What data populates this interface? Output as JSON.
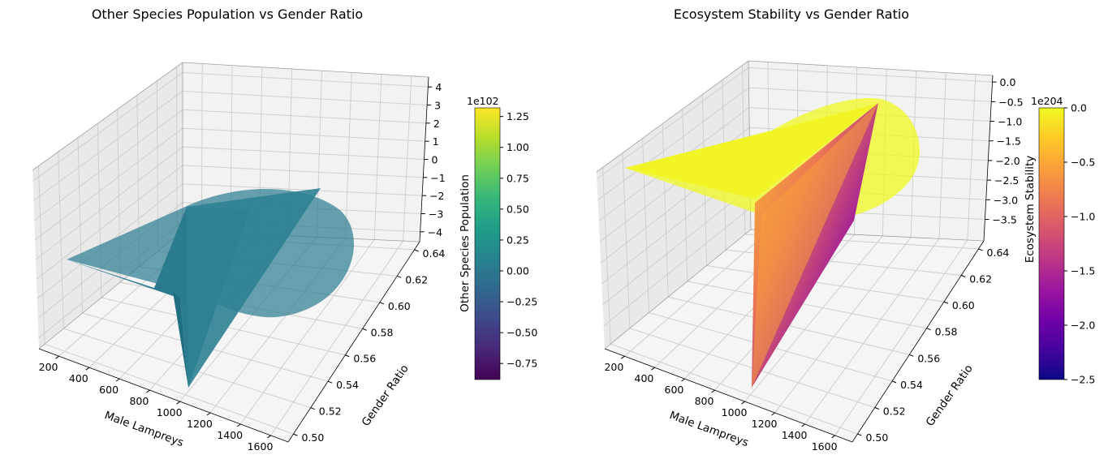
{
  "chart_data": [
    {
      "type": "surface",
      "title": "Other Species Population vs Gender Ratio",
      "xlabel": "Male Lampreys",
      "ylabel": "Gender Ratio",
      "zlabel": "Other Species Population",
      "colormap": "viridis",
      "surface_color": "#2a7b8e",
      "x_ticks": [
        "200",
        "400",
        "600",
        "800",
        "1000",
        "1200",
        "1400",
        "1600"
      ],
      "y_ticks": [
        "0.50",
        "0.52",
        "0.54",
        "0.56",
        "0.58",
        "0.60",
        "0.62",
        "0.64"
      ],
      "z_ticks": [
        "4",
        "3",
        "2",
        "1",
        "0",
        "−1",
        "−2",
        "−3",
        "−4"
      ],
      "colorbar": {
        "offset": "1e102",
        "ticks": [
          "1.25",
          "1.00",
          "0.75",
          "0.50",
          "0.25",
          "0.00",
          "−0.25",
          "−0.50",
          "−0.75"
        ],
        "range": [
          -0.88,
          1.32
        ],
        "tick_values": [
          1.25,
          1.0,
          0.75,
          0.5,
          0.25,
          0.0,
          -0.25,
          -0.5,
          -0.75
        ],
        "colors": [
          "#440154",
          "#482878",
          "#3e4989",
          "#31688e",
          "#26828e",
          "#1f9e89",
          "#35b779",
          "#6ece58",
          "#b5de2b",
          "#fde725"
        ]
      }
    },
    {
      "type": "surface",
      "title": "Ecosystem Stability vs Gender Ratio",
      "xlabel": "Male Lampreys",
      "ylabel": "Gender Ratio",
      "zlabel": "Ecosystem Stability",
      "colormap": "plasma",
      "x_ticks": [
        "200",
        "400",
        "600",
        "800",
        "1000",
        "1200",
        "1400",
        "1600"
      ],
      "y_ticks": [
        "0.50",
        "0.52",
        "0.54",
        "0.56",
        "0.58",
        "0.60",
        "0.62",
        "0.64"
      ],
      "z_ticks": [
        "0.0",
        "−0.5",
        "−1.0",
        "−1.5",
        "−2.0",
        "−2.5",
        "−3.0",
        "−3.5"
      ],
      "colorbar": {
        "offset": "1e204",
        "ticks": [
          "0.0",
          "−0.5",
          "−1.0",
          "−1.5",
          "−2.0",
          "−2.5"
        ],
        "range": [
          -2.5,
          0.0
        ],
        "tick_values": [
          0.0,
          -0.5,
          -1.0,
          -1.5,
          -2.0,
          -2.5
        ],
        "colors": [
          "#0d0887",
          "#46039f",
          "#7201a8",
          "#9c179e",
          "#bd3786",
          "#d8576b",
          "#ed7953",
          "#fb9f3a",
          "#fdca26",
          "#f0f921"
        ]
      }
    }
  ]
}
